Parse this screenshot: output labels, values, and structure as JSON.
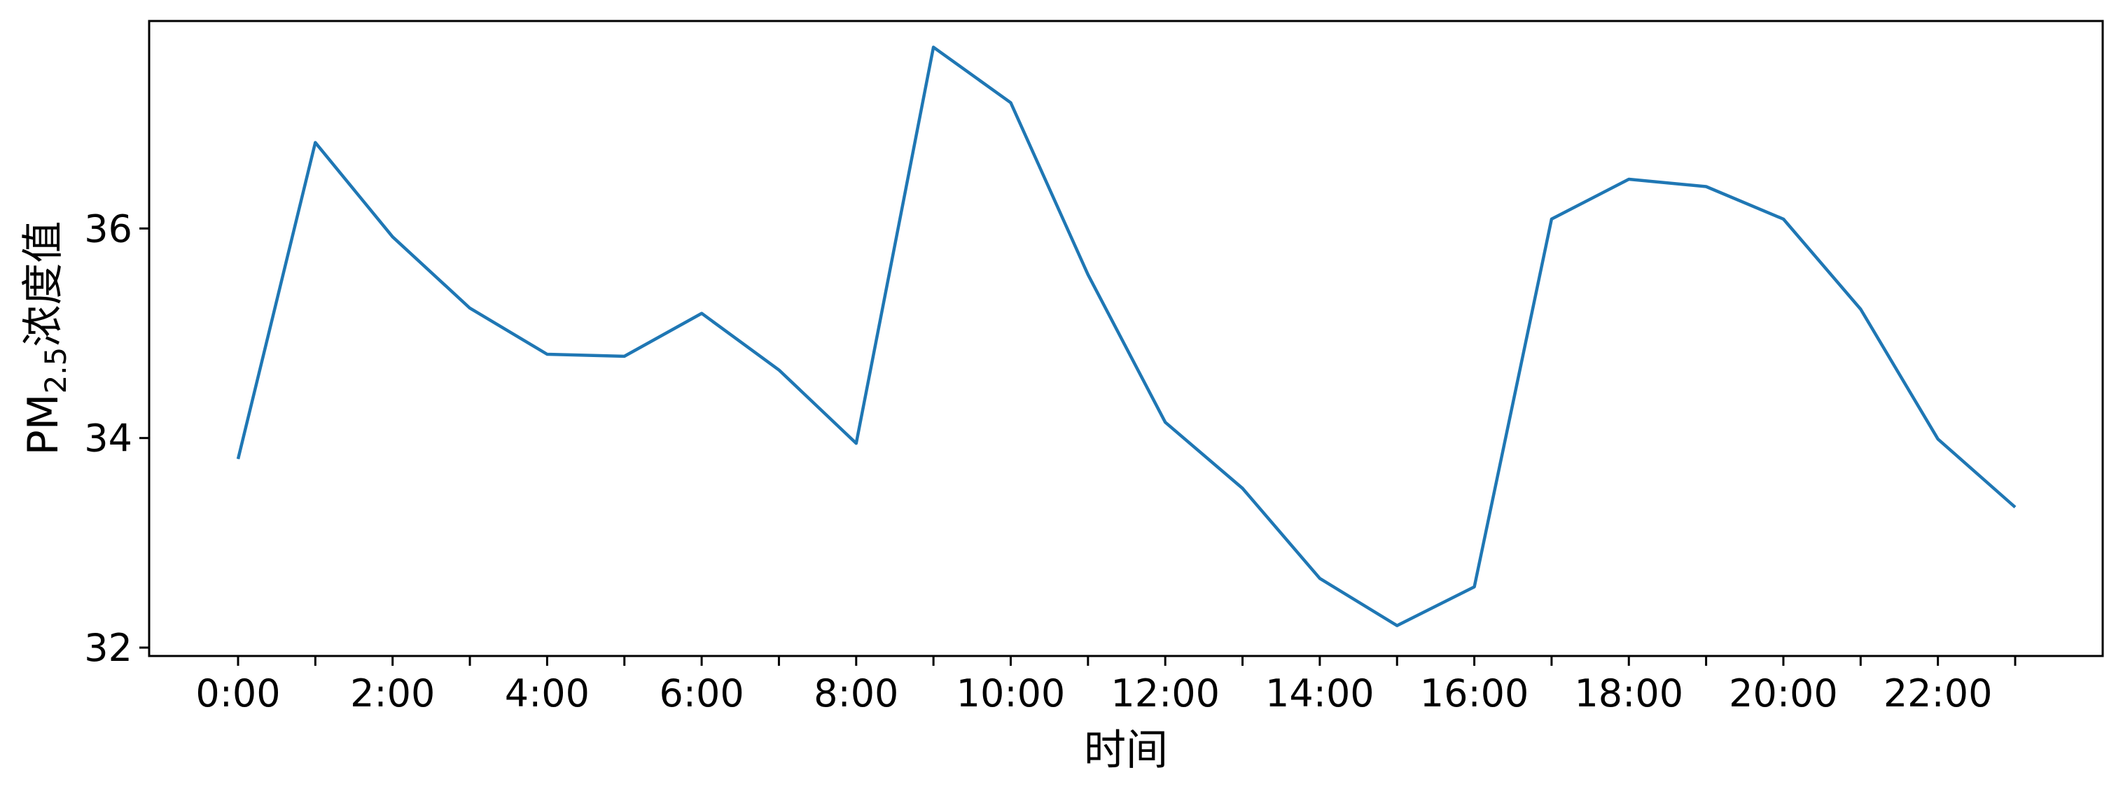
{
  "chart_data": {
    "type": "line",
    "xlabel": "时间",
    "ylabel": {
      "prefix": "PM",
      "subscript": "2.5",
      "suffix": "浓度值"
    },
    "x": [
      "0:00",
      "1:00",
      "2:00",
      "3:00",
      "4:00",
      "5:00",
      "6:00",
      "7:00",
      "8:00",
      "9:00",
      "10:00",
      "11:00",
      "12:00",
      "13:00",
      "14:00",
      "15:00",
      "16:00",
      "17:00",
      "18:00",
      "19:00",
      "20:00",
      "21:00",
      "22:00",
      "23:00"
    ],
    "x_tick_labels": [
      "0:00",
      "2:00",
      "4:00",
      "6:00",
      "8:00",
      "10:00",
      "12:00",
      "14:00",
      "16:00",
      "18:00",
      "20:00",
      "22:00"
    ],
    "y_ticks": [
      32,
      34,
      36
    ],
    "ylim": [
      31.92,
      37.98
    ],
    "series": [
      {
        "color": "#1f77b4",
        "values": [
          33.8,
          36.82,
          35.92,
          35.24,
          34.8,
          34.78,
          35.19,
          34.65,
          33.95,
          37.73,
          37.2,
          35.56,
          34.15,
          33.52,
          32.66,
          32.21,
          32.58,
          36.09,
          36.47,
          36.4,
          36.09,
          35.23,
          33.99,
          33.34
        ]
      }
    ],
    "grid": false,
    "legend": "none"
  }
}
